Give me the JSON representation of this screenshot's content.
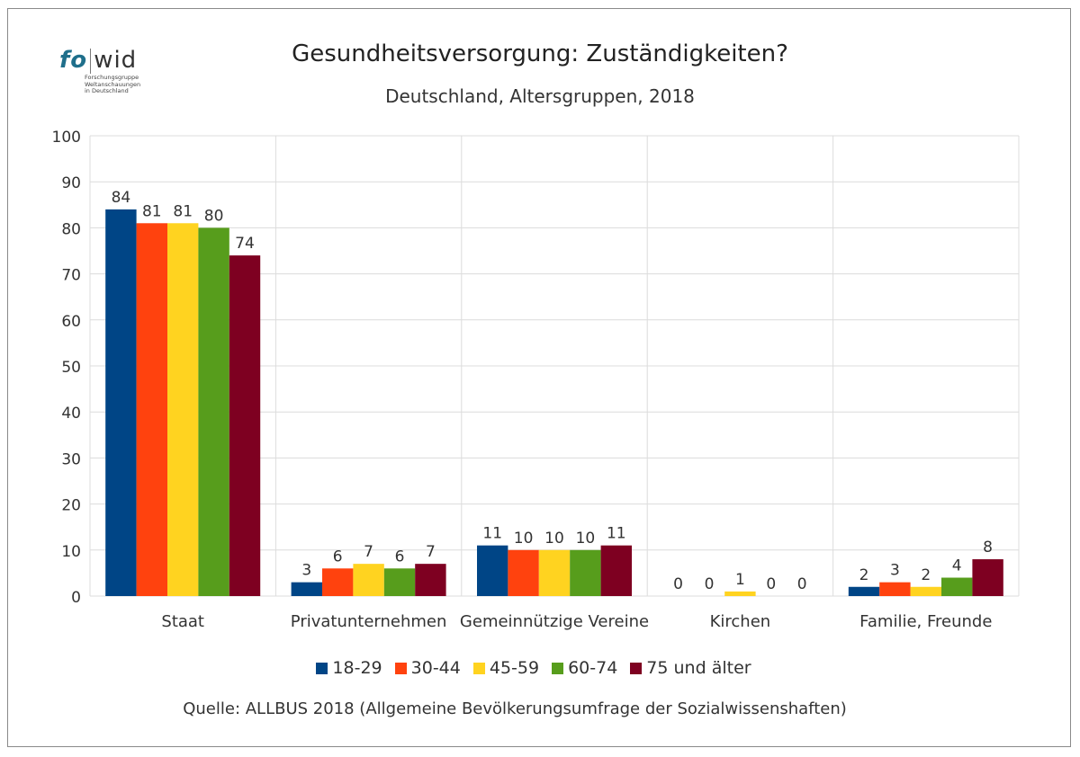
{
  "logo": {
    "fo": "fo",
    "wid": "wid",
    "tagline": "Forschungsgruppe\nWeltanschauungen\nin Deutschland"
  },
  "chart_data": {
    "type": "bar",
    "title": "Gesundheitsversorgung: Zuständigkeiten?",
    "subtitle": "Deutschland, Altersgruppen, 2018",
    "categories": [
      "Staat",
      "Privatunternehmen",
      "Gemeinnützige Vereine",
      "Kirchen",
      "Familie, Freunde"
    ],
    "series": [
      {
        "name": "18-29",
        "color": "#004586",
        "values": [
          84,
          3,
          11,
          0,
          2
        ]
      },
      {
        "name": "30-44",
        "color": "#ff420e",
        "values": [
          81,
          6,
          10,
          0,
          3
        ]
      },
      {
        "name": "45-59",
        "color": "#ffd320",
        "values": [
          81,
          7,
          10,
          1,
          2
        ]
      },
      {
        "name": "60-74",
        "color": "#579d1c",
        "values": [
          80,
          6,
          10,
          0,
          4
        ]
      },
      {
        "name": "75 und älter",
        "color": "#7e0021",
        "values": [
          74,
          7,
          11,
          0,
          8
        ]
      }
    ],
    "ylim": [
      0,
      100
    ],
    "yticks": [
      0,
      10,
      20,
      30,
      40,
      50,
      60,
      70,
      80,
      90,
      100
    ],
    "grid": true,
    "legend": "bottom",
    "source": "Quelle: ALLBUS 2018 (Allgemeine Bevölkerungsumfrage der Sozialwissenshaften)"
  }
}
